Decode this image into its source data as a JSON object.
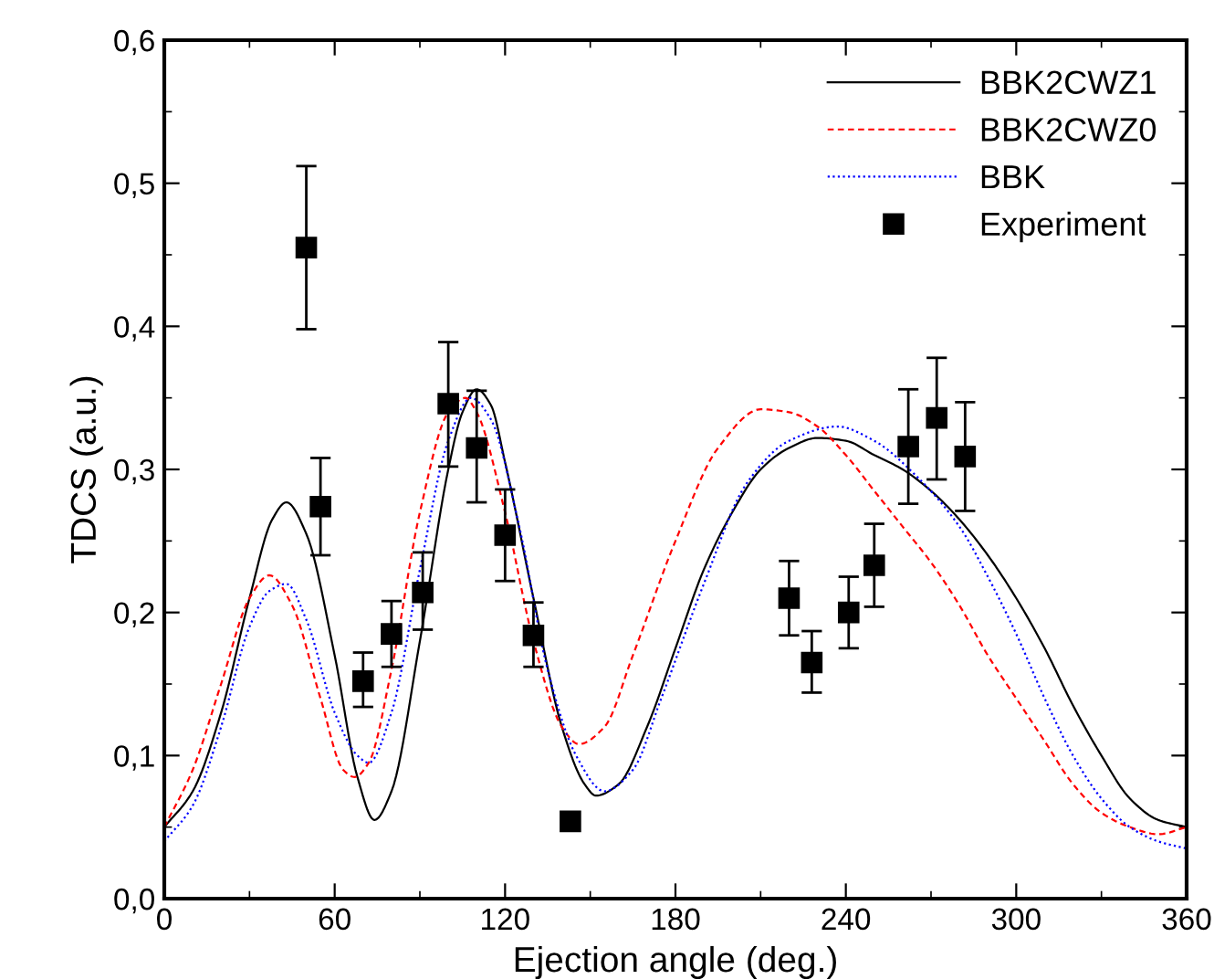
{
  "chart_data": {
    "type": "line",
    "xlabel": "Ejection angle (deg.)",
    "ylabel": "TDCS (a.u.)",
    "xlim": [
      0,
      360
    ],
    "xticks": [
      0,
      60,
      120,
      180,
      240,
      300,
      360
    ],
    "ylim": [
      0,
      0.6
    ],
    "yticks": [
      {
        "value": 0,
        "label": "0,0"
      },
      {
        "value": 0.1,
        "label": "0,1"
      },
      {
        "value": 0.2,
        "label": "0,2"
      },
      {
        "value": 0.3,
        "label": "0,3"
      },
      {
        "value": 0.4,
        "label": "0,4"
      },
      {
        "value": 0.5,
        "label": "0,5"
      },
      {
        "value": 0.6,
        "label": "0,6"
      }
    ],
    "grid": false,
    "legend": "top right",
    "series": [
      {
        "name": "BBK2CWZ1",
        "color": "#000000",
        "line_style": "solid",
        "x": [
          0,
          10,
          20,
          30,
          38,
          43,
          50,
          60,
          68,
          74,
          80,
          90,
          100,
          105,
          110,
          115,
          120,
          130,
          140,
          148,
          152,
          160,
          170,
          180,
          190,
          200,
          210,
          220,
          230,
          240,
          250,
          260,
          270,
          280,
          290,
          300,
          310,
          320,
          330,
          340,
          350,
          360
        ],
        "values": [
          0.05,
          0.075,
          0.13,
          0.21,
          0.265,
          0.277,
          0.255,
          0.17,
          0.085,
          0.055,
          0.075,
          0.18,
          0.3,
          0.34,
          0.356,
          0.345,
          0.305,
          0.21,
          0.12,
          0.08,
          0.072,
          0.08,
          0.12,
          0.175,
          0.23,
          0.27,
          0.3,
          0.315,
          0.322,
          0.32,
          0.31,
          0.3,
          0.285,
          0.265,
          0.24,
          0.21,
          0.175,
          0.135,
          0.1,
          0.07,
          0.055,
          0.05
        ]
      },
      {
        "name": "BBK2CWZ0",
        "color": "#ff0000",
        "line_style": "dashed",
        "x": [
          0,
          10,
          20,
          30,
          37,
          45,
          55,
          63,
          67,
          72,
          80,
          90,
          100,
          106,
          110,
          120,
          130,
          140,
          146,
          155,
          165,
          180,
          195,
          210,
          220,
          230,
          240,
          250,
          260,
          270,
          280,
          290,
          300,
          310,
          320,
          330,
          340,
          350,
          360
        ],
        "values": [
          0.05,
          0.09,
          0.15,
          0.21,
          0.226,
          0.205,
          0.14,
          0.09,
          0.085,
          0.095,
          0.16,
          0.27,
          0.34,
          0.35,
          0.34,
          0.27,
          0.18,
          0.12,
          0.108,
          0.12,
          0.17,
          0.25,
          0.315,
          0.342,
          0.34,
          0.33,
          0.31,
          0.285,
          0.26,
          0.235,
          0.205,
          0.17,
          0.14,
          0.11,
          0.08,
          0.06,
          0.05,
          0.045,
          0.05
        ]
      },
      {
        "name": "BBK",
        "color": "#0000ff",
        "line_style": "dotted",
        "x": [
          0,
          10,
          20,
          30,
          37,
          43,
          50,
          60,
          68,
          72,
          80,
          90,
          100,
          108,
          115,
          125,
          135,
          145,
          155,
          165,
          175,
          190,
          205,
          220,
          237,
          250,
          265,
          280,
          290,
          300,
          310,
          320,
          330,
          340,
          350,
          360
        ],
        "values": [
          0.04,
          0.065,
          0.12,
          0.19,
          0.215,
          0.22,
          0.195,
          0.13,
          0.1,
          0.095,
          0.13,
          0.23,
          0.32,
          0.35,
          0.335,
          0.26,
          0.16,
          0.1,
          0.075,
          0.09,
          0.14,
          0.22,
          0.29,
          0.32,
          0.33,
          0.32,
          0.295,
          0.26,
          0.225,
          0.185,
          0.14,
          0.1,
          0.07,
          0.05,
          0.04,
          0.035
        ]
      },
      {
        "name": "Experiment",
        "type": "scatter",
        "color": "#000000",
        "marker": "square",
        "x": [
          50,
          55,
          70,
          80,
          91,
          100,
          110,
          120,
          130,
          143,
          220,
          228,
          241,
          250,
          262,
          272,
          282
        ],
        "values": [
          0.455,
          0.274,
          0.152,
          0.185,
          0.214,
          0.346,
          0.315,
          0.254,
          0.184,
          0.054,
          0.21,
          0.165,
          0.2,
          0.233,
          0.316,
          0.336,
          0.309
        ],
        "errors": [
          [
            0.398,
            0.512
          ],
          [
            0.24,
            0.308
          ],
          [
            0.134,
            0.172
          ],
          [
            0.162,
            0.208
          ],
          [
            0.188,
            0.242
          ],
          [
            0.302,
            0.389
          ],
          [
            0.277,
            0.355
          ],
          [
            0.222,
            0.286
          ],
          [
            0.162,
            0.207
          ],
          null,
          [
            0.184,
            0.236
          ],
          [
            0.144,
            0.187
          ],
          [
            0.175,
            0.225
          ],
          [
            0.204,
            0.262
          ],
          [
            0.276,
            0.356
          ],
          [
            0.293,
            0.378
          ],
          [
            0.271,
            0.347
          ]
        ]
      }
    ]
  }
}
